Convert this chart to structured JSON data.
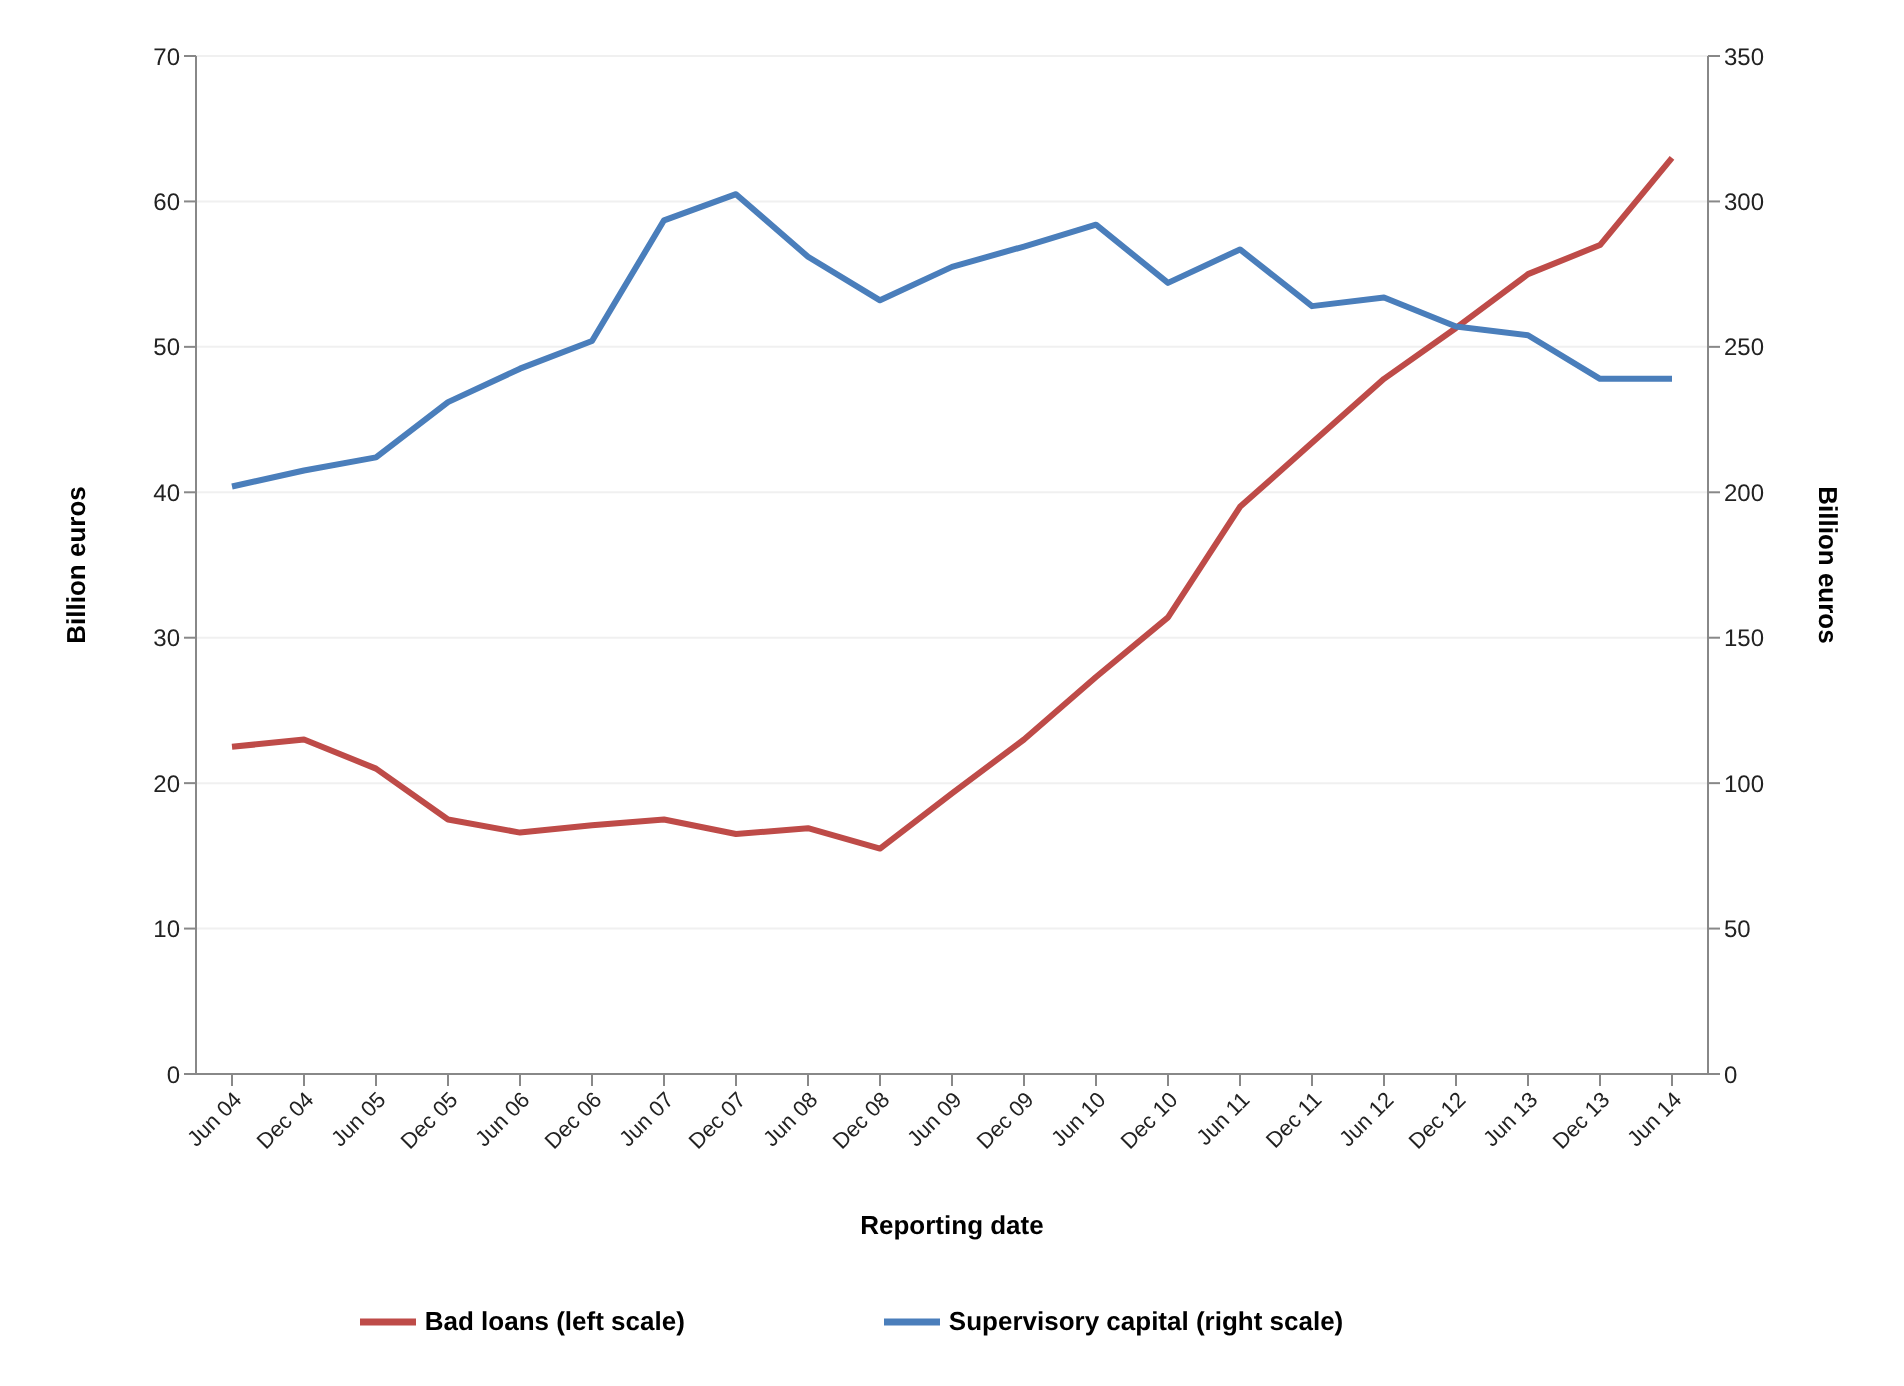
{
  "chart_data": {
    "type": "line",
    "xlabel": "Reporting date",
    "ylabel": "Billion euros",
    "y2label": "Billion euros",
    "categories": [
      "Jun 04",
      "Dec 04",
      "Jun 05",
      "Dec 05",
      "Jun 06",
      "Dec 06",
      "Jun 07",
      "Dec 07",
      "Jun 08",
      "Dec 08",
      "Jun 09",
      "Dec 09",
      "Jun 10",
      "Dec 10",
      "Jun 11",
      "Dec 11",
      "Jun 12",
      "Dec 12",
      "Jun 13",
      "Dec 13",
      "Jun 14"
    ],
    "series": [
      {
        "name": "Bad loans (left scale)",
        "color": "#be4b48",
        "values": [
          22.5,
          23,
          21,
          17.5,
          16.6,
          17.1,
          17.5,
          16.5,
          16.9,
          15.5,
          19.3,
          23,
          27.3,
          31.4,
          39,
          43.4,
          47.8,
          51.3,
          55,
          57,
          63
        ]
      },
      {
        "name": "Supervisory capital (right scale)",
        "color": "#4a7ebb",
        "axis": "y2",
        "values": [
          202,
          207.5,
          212,
          231,
          242.5,
          252,
          293.5,
          302.5,
          281,
          266,
          277.5,
          284.5,
          292,
          272,
          283.5,
          264,
          267,
          257,
          254,
          239,
          239
        ]
      }
    ],
    "ylim": [
      0,
      70
    ],
    "yticks": [
      0,
      10,
      20,
      30,
      40,
      50,
      60,
      70
    ],
    "y2lim": [
      0,
      350
    ],
    "y2ticks": [
      0,
      50,
      100,
      150,
      200,
      250,
      300,
      350
    ],
    "grid": "y",
    "legend": "bottom",
    "marker": "none",
    "line_style": "solid"
  }
}
